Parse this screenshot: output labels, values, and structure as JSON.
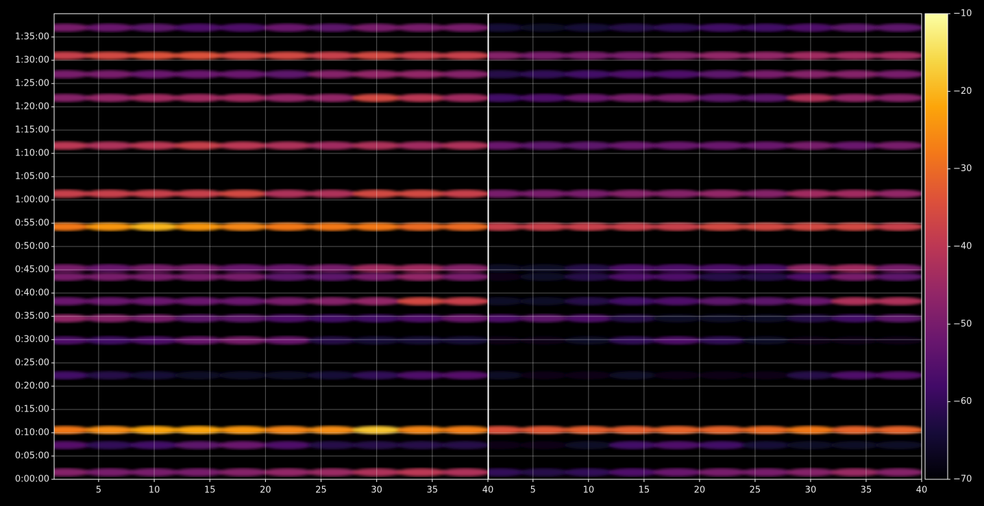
{
  "chart_data": {
    "type": "heatmap",
    "colormap": "inferno",
    "clim": [
      -70,
      -10
    ],
    "cticks": [
      {
        "value": -70,
        "label": "−70"
      },
      {
        "value": -60,
        "label": "−60"
      },
      {
        "value": -50,
        "label": "−50"
      },
      {
        "value": -40,
        "label": "−40"
      },
      {
        "value": -30,
        "label": "−30"
      },
      {
        "value": -20,
        "label": "−20"
      },
      {
        "value": -10,
        "label": "−10"
      }
    ],
    "ylim": [
      0,
      6000
    ],
    "yticks": [
      {
        "value": 0,
        "label": "0:00:00"
      },
      {
        "value": 300,
        "label": "0:05:00"
      },
      {
        "value": 600,
        "label": "0:10:00"
      },
      {
        "value": 900,
        "label": "0:15:00"
      },
      {
        "value": 1200,
        "label": "0:20:00"
      },
      {
        "value": 1500,
        "label": "0:25:00"
      },
      {
        "value": 1800,
        "label": "0:30:00"
      },
      {
        "value": 2100,
        "label": "0:35:00"
      },
      {
        "value": 2400,
        "label": "0:40:00"
      },
      {
        "value": 2700,
        "label": "0:45:00"
      },
      {
        "value": 3000,
        "label": "0:50:00"
      },
      {
        "value": 3300,
        "label": "0:55:00"
      },
      {
        "value": 3600,
        "label": "1:00:00"
      },
      {
        "value": 3900,
        "label": "1:05:00"
      },
      {
        "value": 4200,
        "label": "1:10:00"
      },
      {
        "value": 4500,
        "label": "1:15:00"
      },
      {
        "value": 4800,
        "label": "1:20:00"
      },
      {
        "value": 5100,
        "label": "1:25:00"
      },
      {
        "value": 5400,
        "label": "1:30:00"
      },
      {
        "value": 5700,
        "label": "1:35:00"
      }
    ],
    "grid": true,
    "rows": [
      90,
      440,
      635,
      1340,
      1790,
      2075,
      2295,
      2610,
      2720,
      3255,
      3680,
      4300,
      4915,
      5220,
      5460,
      5820
    ],
    "panels": [
      {
        "xlim": [
          1,
          40
        ],
        "xticks": [
          5,
          10,
          15,
          20,
          25,
          30,
          35,
          40
        ],
        "columns": [
          2,
          6,
          10,
          14,
          18,
          22,
          26,
          30,
          34,
          38
        ],
        "values": [
          [
            -48,
            -50,
            -50,
            -50,
            -48,
            -46,
            -45,
            -42,
            -40,
            -42
          ],
          [
            -55,
            -60,
            -58,
            -54,
            -52,
            -56,
            -62,
            -62,
            -62,
            -62
          ],
          [
            -28,
            -25,
            -22,
            -22,
            -24,
            -26,
            -25,
            -18,
            -26,
            -27
          ],
          [
            -58,
            -62,
            -64,
            -66,
            -66,
            -66,
            -64,
            -60,
            -56,
            -55
          ],
          [
            -56,
            -58,
            -56,
            -52,
            -50,
            -52,
            -62,
            -64,
            -64,
            -64
          ],
          [
            -46,
            -48,
            -50,
            -54,
            -54,
            -56,
            -58,
            -58,
            -56,
            -52
          ],
          [
            -52,
            -52,
            -52,
            -52,
            -52,
            -50,
            -48,
            -46,
            -36,
            -38
          ],
          [
            -50,
            -50,
            -50,
            -50,
            -50,
            -54,
            -54,
            -50,
            -46,
            -50
          ],
          [
            -50,
            -52,
            -50,
            -50,
            -52,
            -52,
            -50,
            -44,
            -44,
            -48
          ],
          [
            -28,
            -24,
            -20,
            -24,
            -26,
            -28,
            -28,
            -28,
            -30,
            -30
          ],
          [
            -38,
            -38,
            -38,
            -38,
            -36,
            -42,
            -42,
            -36,
            -36,
            -38
          ],
          [
            -40,
            -42,
            -40,
            -38,
            -40,
            -42,
            -44,
            -42,
            -44,
            -42
          ],
          [
            -48,
            -46,
            -44,
            -44,
            -44,
            -46,
            -46,
            -36,
            -40,
            -44
          ],
          [
            -50,
            -50,
            -52,
            -52,
            -52,
            -54,
            -48,
            -46,
            -46,
            -48
          ],
          [
            -38,
            -36,
            -34,
            -34,
            -36,
            -36,
            -38,
            -36,
            -38,
            -38
          ],
          [
            -50,
            -52,
            -54,
            -56,
            -56,
            -52,
            -54,
            -50,
            -50,
            -50
          ]
        ]
      },
      {
        "xlim": [
          1,
          40
        ],
        "xticks": [
          5,
          10,
          15,
          20,
          25,
          30,
          35,
          40
        ],
        "columns": [
          2,
          6,
          10,
          14,
          18,
          22,
          26,
          30,
          34,
          38
        ],
        "values": [
          [
            -60,
            -62,
            -60,
            -56,
            -52,
            -50,
            -50,
            -48,
            -45,
            -48
          ],
          [
            -68,
            -68,
            -66,
            -58,
            -56,
            -58,
            -64,
            -66,
            -66,
            -66
          ],
          [
            -34,
            -33,
            -32,
            -32,
            -31,
            -31,
            -30,
            -28,
            -31,
            -31
          ],
          [
            -66,
            -68,
            -68,
            -66,
            -68,
            -68,
            -68,
            -62,
            -56,
            -55
          ],
          [
            -68,
            -68,
            -66,
            -60,
            -56,
            -60,
            -66,
            -68,
            -68,
            -68
          ],
          [
            -56,
            -54,
            -56,
            -62,
            -66,
            -66,
            -66,
            -62,
            -58,
            -54
          ],
          [
            -66,
            -66,
            -62,
            -58,
            -56,
            -54,
            -54,
            -52,
            -42,
            -42
          ],
          [
            -68,
            -66,
            -62,
            -56,
            -56,
            -62,
            -62,
            -56,
            -50,
            -54
          ],
          [
            -66,
            -66,
            -62,
            -56,
            -56,
            -56,
            -56,
            -46,
            -44,
            -50
          ],
          [
            -38,
            -38,
            -38,
            -38,
            -38,
            -36,
            -36,
            -36,
            -36,
            -38
          ],
          [
            -50,
            -50,
            -50,
            -48,
            -48,
            -46,
            -48,
            -44,
            -44,
            -46
          ],
          [
            -52,
            -54,
            -54,
            -52,
            -52,
            -52,
            -52,
            -50,
            -52,
            -50
          ],
          [
            -58,
            -56,
            -52,
            -50,
            -50,
            -54,
            -54,
            -42,
            -46,
            -48
          ],
          [
            -62,
            -60,
            -58,
            -56,
            -56,
            -54,
            -50,
            -48,
            -48,
            -50
          ],
          [
            -48,
            -50,
            -50,
            -50,
            -48,
            -46,
            -46,
            -44,
            -44,
            -44
          ],
          [
            -64,
            -66,
            -64,
            -62,
            -60,
            -58,
            -58,
            -56,
            -54,
            -54
          ]
        ]
      }
    ]
  }
}
